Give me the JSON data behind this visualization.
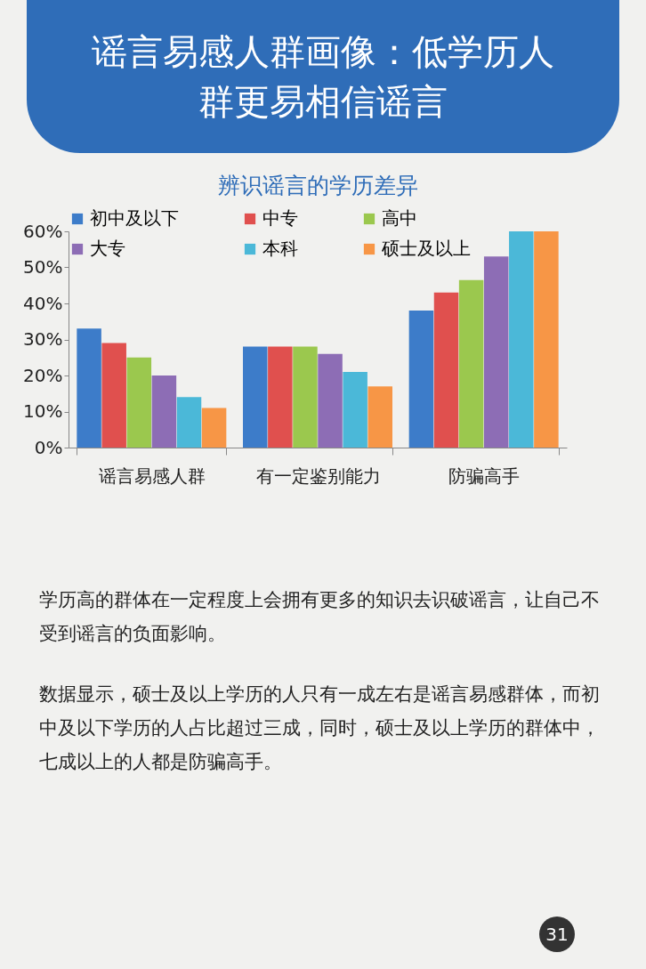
{
  "chart_data": {
    "type": "bar",
    "title": "谣言易感人群画像：低学历人群更易相信谣言",
    "subtitle": "辨识谣言的学历差异",
    "categories": [
      "谣言易感人群",
      "有一定鉴别能力",
      "防骗高手"
    ],
    "series": [
      {
        "name": "初中及以下",
        "color": "#3d7cc9",
        "values": [
          33,
          28,
          38
        ]
      },
      {
        "name": "中专",
        "color": "#e0504e",
        "values": [
          29,
          28,
          43
        ]
      },
      {
        "name": "高中",
        "color": "#9bc84e",
        "values": [
          25,
          28,
          46.5
        ]
      },
      {
        "name": "大专",
        "color": "#8d6db5",
        "values": [
          20,
          26,
          53
        ]
      },
      {
        "name": "本科",
        "color": "#4bb8d8",
        "values": [
          14,
          21,
          60
        ]
      },
      {
        "name": "硕士及以上",
        "color": "#f79646",
        "values": [
          11,
          17,
          60
        ]
      }
    ],
    "ylim": [
      0,
      60
    ],
    "yticks": [
      {
        "value": 0,
        "label": "0%"
      },
      {
        "value": 10,
        "label": "10%"
      },
      {
        "value": 20,
        "label": "20%"
      },
      {
        "value": 30,
        "label": "30%"
      },
      {
        "value": 40,
        "label": "40%"
      },
      {
        "value": 50,
        "label": "50%"
      },
      {
        "value": 60,
        "label": "60%"
      }
    ],
    "grid": false,
    "legend": "top",
    "annotations": [
      "学历高的群体在一定程度上会拥有更多的知识去识破谣言，让自己不受到谣言的负面影响。",
      "数据显示，硕士及以上学历的人只有一成左右是谣言易感群体，而初中及以下学历的人占比超过三成，同时，硕士及以上学历的群体中，七成以上的人都是防骗高手。",
      "31"
    ]
  }
}
